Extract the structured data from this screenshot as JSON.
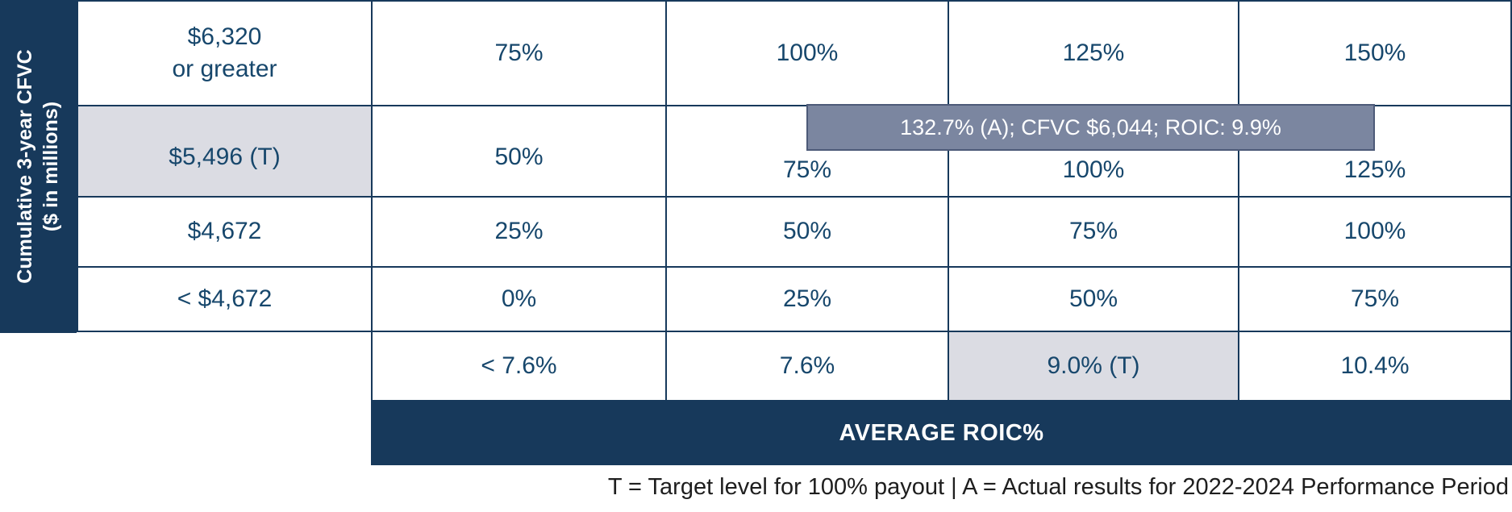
{
  "colors": {
    "navy": "#17395B",
    "value_text": "#17476C",
    "highlight_gray": "#DBDCE3",
    "callout_bg": "#7B86A0",
    "callout_border": "#4D5A78",
    "footnote_text": "#1E1E1E"
  },
  "y_axis": {
    "line1": "Cumulative 3-year CFVC",
    "line2": "($ in millions)"
  },
  "matrix": {
    "rows": [
      {
        "label_lines": [
          "$6,320",
          "or greater"
        ],
        "highlighted": false,
        "values": [
          "75%",
          "100%",
          "125%",
          "150%"
        ]
      },
      {
        "label_lines": [
          "$5,496 (T)"
        ],
        "highlighted": true,
        "values": [
          "50%",
          "75%",
          "100%",
          "125%"
        ]
      },
      {
        "label_lines": [
          "$4,672"
        ],
        "highlighted": false,
        "values": [
          "25%",
          "50%",
          "75%",
          "100%"
        ]
      },
      {
        "label_lines": [
          "< $4,672"
        ],
        "highlighted": false,
        "values": [
          "0%",
          "25%",
          "50%",
          "75%"
        ]
      }
    ]
  },
  "roic_row": {
    "values": [
      "< 7.6%",
      "7.6%",
      "9.0% (T)",
      "10.4%"
    ],
    "highlighted_index": 2
  },
  "callout": {
    "text": "132.7% (A); CFVC $6,044; ROIC: 9.9%"
  },
  "x_axis": {
    "title": "AVERAGE ROIC%"
  },
  "footnote": {
    "text": "T = Target level for 100% payout | A = Actual results for 2022-2024 Performance Period"
  },
  "chart_data": {
    "type": "table",
    "title": "AVERAGE ROIC%",
    "row_axis_label": "Cumulative 3-year CFVC ($ in millions)",
    "row_categories": [
      "$6,320 or greater",
      "$5,496 (T)",
      "$4,672",
      "< $4,672"
    ],
    "column_categories": [
      "< 7.6%",
      "7.6%",
      "9.0% (T)",
      "10.4%"
    ],
    "payout_values": [
      [
        "75%",
        "100%",
        "125%",
        "150%"
      ],
      [
        "50%",
        "75%",
        "100%",
        "125%"
      ],
      [
        "25%",
        "50%",
        "75%",
        "100%"
      ],
      [
        "0%",
        "25%",
        "50%",
        "75%"
      ]
    ],
    "target_row": "$5,496 (T)",
    "target_column": "9.0% (T)",
    "actual_result": "132.7% (A); CFVC $6,044; ROIC: 9.9%",
    "footnote": "T = Target level for 100% payout | A = Actual results for 2022-2024 Performance Period"
  }
}
